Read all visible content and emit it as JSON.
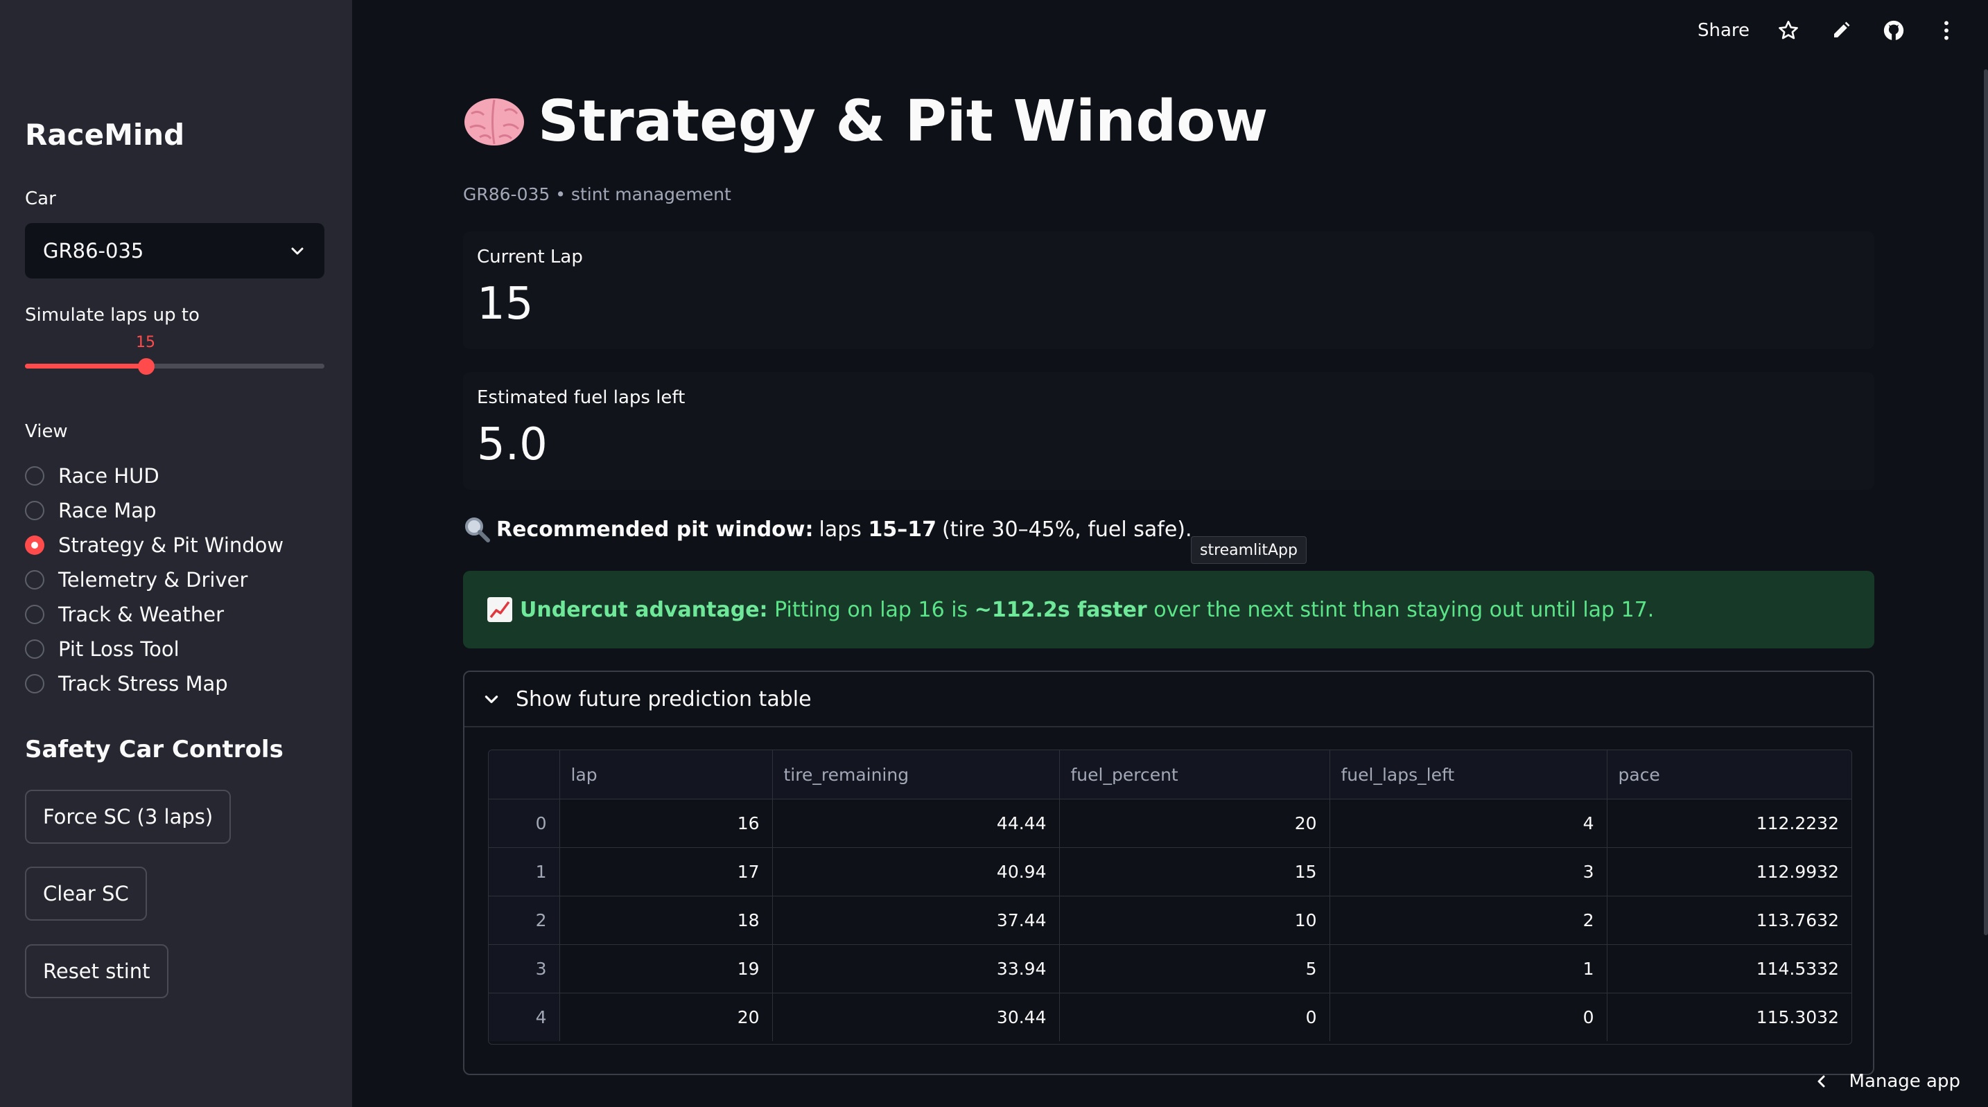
{
  "sidebar": {
    "app_title": "RaceMind",
    "car_label": "Car",
    "car_value": "GR86-035",
    "slider_label": "Simulate laps up to",
    "slider_value": "15",
    "slider_fraction": 0.405,
    "view_label": "View",
    "views": [
      {
        "label": "Race HUD",
        "selected": false
      },
      {
        "label": "Race Map",
        "selected": false
      },
      {
        "label": "Strategy & Pit Window",
        "selected": true
      },
      {
        "label": "Telemetry & Driver",
        "selected": false
      },
      {
        "label": "Track & Weather",
        "selected": false
      },
      {
        "label": "Pit Loss Tool",
        "selected": false
      },
      {
        "label": "Track Stress Map",
        "selected": false
      }
    ],
    "safety_heading": "Safety Car Controls",
    "buttons": {
      "force_sc": "Force SC (3 laps)",
      "clear_sc": "Clear SC",
      "reset_stint": "Reset stint"
    }
  },
  "topbar": {
    "share": "Share",
    "icons": [
      "star-icon",
      "edit-icon",
      "github-icon",
      "more-icon"
    ]
  },
  "main": {
    "title": "Strategy & Pit Window",
    "title_icon": "brain-emoji",
    "caption": "GR86-035 • stint management",
    "metric_lap": {
      "label": "Current Lap",
      "value": "15"
    },
    "metric_fuel": {
      "label": "Estimated fuel laps left",
      "value": "5.0"
    },
    "recommendation": {
      "icon": "magnifier-emoji",
      "bold": "Recommended pit window:",
      "pre": "laps",
      "laps": "15–17",
      "post": "(tire 30–45%, fuel safe)."
    },
    "tooltip": "streamlitApp",
    "undercut": {
      "icon": "chart-emoji",
      "bold": "Undercut advantage:",
      "pre": "Pitting on lap 16 is",
      "delta": "~112.2s faster",
      "post": "over the next stint than staying out until lap 17."
    },
    "expander_label": "Show future prediction table",
    "table": {
      "columns": [
        "",
        "lap",
        "tire_remaining",
        "fuel_percent",
        "fuel_laps_left",
        "pace"
      ],
      "rows": [
        [
          "0",
          "16",
          "44.44",
          "20",
          "4",
          "112.2232"
        ],
        [
          "1",
          "17",
          "40.94",
          "15",
          "3",
          "112.9932"
        ],
        [
          "2",
          "18",
          "37.44",
          "10",
          "2",
          "113.7632"
        ],
        [
          "3",
          "19",
          "33.94",
          "5",
          "1",
          "114.5332"
        ],
        [
          "4",
          "20",
          "30.44",
          "0",
          "0",
          "115.3032"
        ]
      ]
    }
  },
  "footer": {
    "manage_app": "Manage app"
  },
  "colors": {
    "accent": "#ff4b4b",
    "background": "#0e1117",
    "sidebar": "#262730",
    "success_bg": "#173928",
    "success_text": "#5ce488"
  }
}
